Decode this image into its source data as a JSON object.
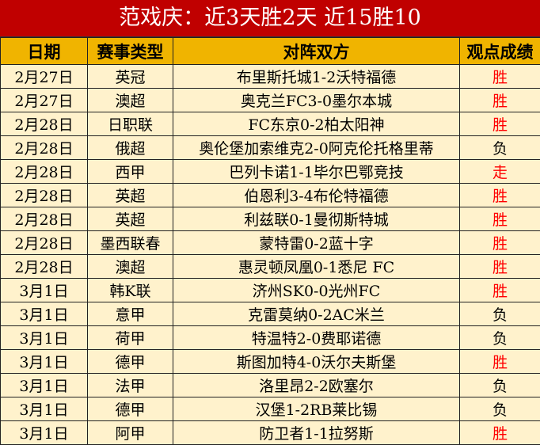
{
  "title": "范戏庆：近3天胜2天 近15胜10",
  "headers": [
    "日期",
    "赛事类型",
    "对阵双方",
    "观点成绩"
  ],
  "result_color": "#ff0000",
  "rows": [
    {
      "date": "2月27日",
      "league": "英冠",
      "match": "布里斯托城1-2沃特福德",
      "result": "胜"
    },
    {
      "date": "2月27日",
      "league": "澳超",
      "match": "奥克兰FC3-0墨尔本城",
      "result": "胜"
    },
    {
      "date": "2月28日",
      "league": "日职联",
      "match": "FC东京0-2柏太阳神",
      "result": "胜"
    },
    {
      "date": "2月28日",
      "league": "俄超",
      "match": "奥伦堡加索维克2-0阿克伦托格里蒂",
      "result": "负"
    },
    {
      "date": "2月28日",
      "league": "西甲",
      "match": "巴列卡诺1-1毕尔巴鄂竞技",
      "result": "走"
    },
    {
      "date": "2月28日",
      "league": "英超",
      "match": "伯恩利3-4布伦特福德",
      "result": "胜"
    },
    {
      "date": "2月28日",
      "league": "英超",
      "match": "利兹联0-1曼彻斯特城",
      "result": "胜"
    },
    {
      "date": "2月28日",
      "league": "墨西联春",
      "match": "蒙特雷0-2蓝十字",
      "result": "胜"
    },
    {
      "date": "2月28日",
      "league": "澳超",
      "match": "惠灵顿凤凰0-1悉尼 FC",
      "result": "胜"
    },
    {
      "date": "3月1日",
      "league": "韩K联",
      "match": "济州SK0-0光州FC",
      "result": "胜"
    },
    {
      "date": "3月1日",
      "league": "意甲",
      "match": "克雷莫纳0-2AC米兰",
      "result": "负"
    },
    {
      "date": "3月1日",
      "league": "荷甲",
      "match": "特温特2-0费耶诺德",
      "result": "负"
    },
    {
      "date": "3月1日",
      "league": "德甲",
      "match": "斯图加特4-0沃尔夫斯堡",
      "result": "胜"
    },
    {
      "date": "3月1日",
      "league": "法甲",
      "match": "洛里昂2-2欧塞尔",
      "result": "负"
    },
    {
      "date": "3月1日",
      "league": "德甲",
      "match": "汉堡1-2RB莱比锡",
      "result": "负"
    },
    {
      "date": "3月1日",
      "league": "阿甲",
      "match": "防卫者1-1拉努斯",
      "result": "胜"
    }
  ]
}
